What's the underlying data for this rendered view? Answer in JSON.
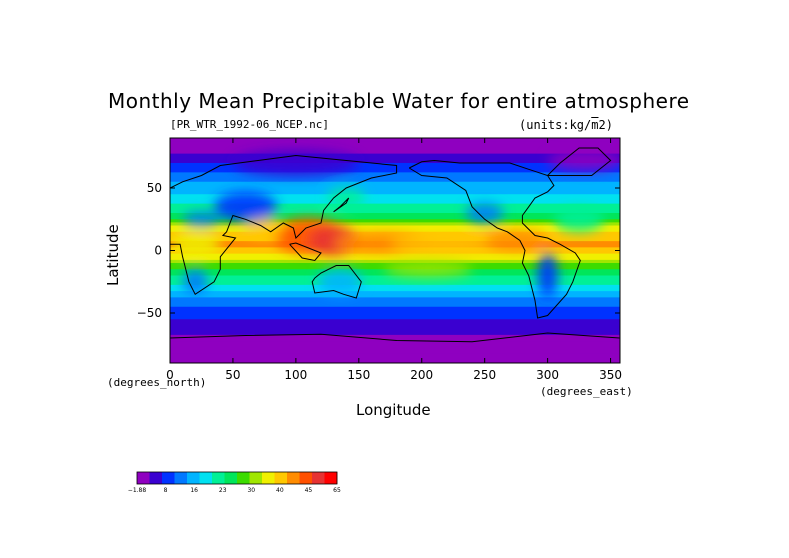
{
  "chart_data": {
    "type": "heatmap",
    "title": "Monthly Mean Precipitable Water for entire atmosphere",
    "subtitle": "[PR_WTR_1992-06_NCEP.nc]",
    "units": "(units:kg/m^2)",
    "xlabel": "Longitude",
    "ylabel": "Latitude",
    "x_units": "(degrees_east)",
    "y_units": "(degrees_north)",
    "xlim": [
      0,
      357.5
    ],
    "ylim": [
      -90,
      90
    ],
    "x_ticks": [
      0,
      50,
      100,
      150,
      200,
      250,
      300,
      350
    ],
    "y_ticks": [
      -50,
      0,
      50
    ],
    "x_tick_labels": [
      "0",
      "50",
      "100",
      "150",
      "200",
      "250",
      "300",
      "350"
    ],
    "y_tick_labels": [
      "−50",
      "0",
      "50"
    ],
    "grid": false,
    "colorbar": {
      "placement": "bottom-left",
      "tick_labels": [
        "−1.88",
        "8",
        "16",
        "23",
        "30",
        "40",
        "45",
        "65"
      ],
      "colors": [
        "#8f00c0",
        "#3a00d0",
        "#0032ff",
        "#0078ff",
        "#00b4ff",
        "#00e1f0",
        "#00f096",
        "#00e65a",
        "#3cdc00",
        "#a0e600",
        "#f0f000",
        "#ffc800",
        "#ff8c00",
        "#ff5000",
        "#e63232",
        "#ff0000"
      ]
    },
    "bands": [
      {
        "lat": 90,
        "value": 0.5
      },
      {
        "lat": 75,
        "value": 5
      },
      {
        "lat": 60,
        "value": 14
      },
      {
        "lat": 45,
        "value": 20
      },
      {
        "lat": 30,
        "value": 28
      },
      {
        "lat": 15,
        "value": 45
      },
      {
        "lat": 5,
        "value": 50
      },
      {
        "lat": -5,
        "value": 42
      },
      {
        "lat": -15,
        "value": 32
      },
      {
        "lat": -30,
        "value": 22
      },
      {
        "lat": -45,
        "value": 12
      },
      {
        "lat": -60,
        "value": 6
      },
      {
        "lat": -75,
        "value": 2
      },
      {
        "lat": -90,
        "value": 0
      }
    ]
  }
}
